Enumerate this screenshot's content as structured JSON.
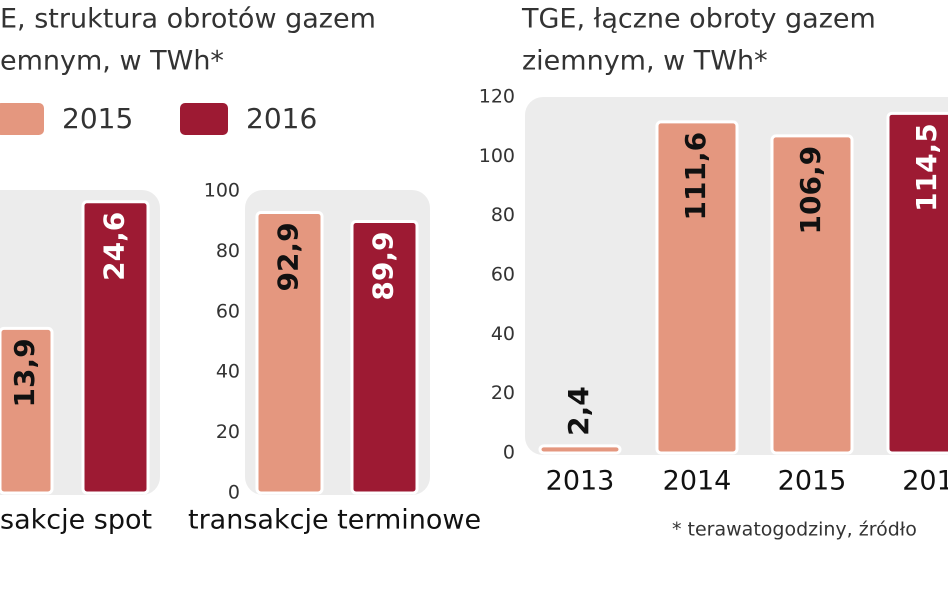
{
  "chart_data": [
    {
      "type": "bar",
      "title_lines": [
        "E, struktura obrotów gazem",
        "emnym, w TWh*"
      ],
      "categories": [
        "sakcje spot"
      ],
      "series": [
        {
          "name": "2015",
          "color": "#e4977f",
          "values": [
            13.9
          ],
          "value_labels": [
            "13,9"
          ]
        },
        {
          "name": "2016",
          "color": "#9d1a33",
          "values": [
            24.6
          ],
          "value_labels": [
            "24,6"
          ]
        }
      ],
      "ylim": [
        0,
        25
      ]
    },
    {
      "type": "bar",
      "categories": [
        "transakcje terminowe"
      ],
      "series": [
        {
          "color": "#e4977f",
          "values": [
            92.9
          ],
          "value_labels": [
            "92,9"
          ]
        },
        {
          "color": "#9d1a33",
          "values": [
            89.9
          ],
          "value_labels": [
            "89,9"
          ]
        }
      ],
      "ylim": [
        0,
        100
      ],
      "yticks": [
        0,
        20,
        40,
        60,
        80,
        100
      ]
    },
    {
      "type": "bar",
      "title_lines": [
        "TGE, łączne obroty gazem",
        "ziemnym, w TWh*"
      ],
      "categories": [
        "2013",
        "2014",
        "2015",
        "201"
      ],
      "values": [
        2.4,
        111.6,
        106.9,
        114.5
      ],
      "value_labels": [
        "2,4",
        "111,6",
        "106,9",
        "114,5"
      ],
      "colors": [
        "#e4977f",
        "#e4977f",
        "#e4977f",
        "#9d1a33"
      ],
      "ylim": [
        0,
        120
      ],
      "yticks": [
        0,
        20,
        40,
        60,
        80,
        100,
        120
      ],
      "note": "* terawatogodziny, źródło"
    }
  ]
}
